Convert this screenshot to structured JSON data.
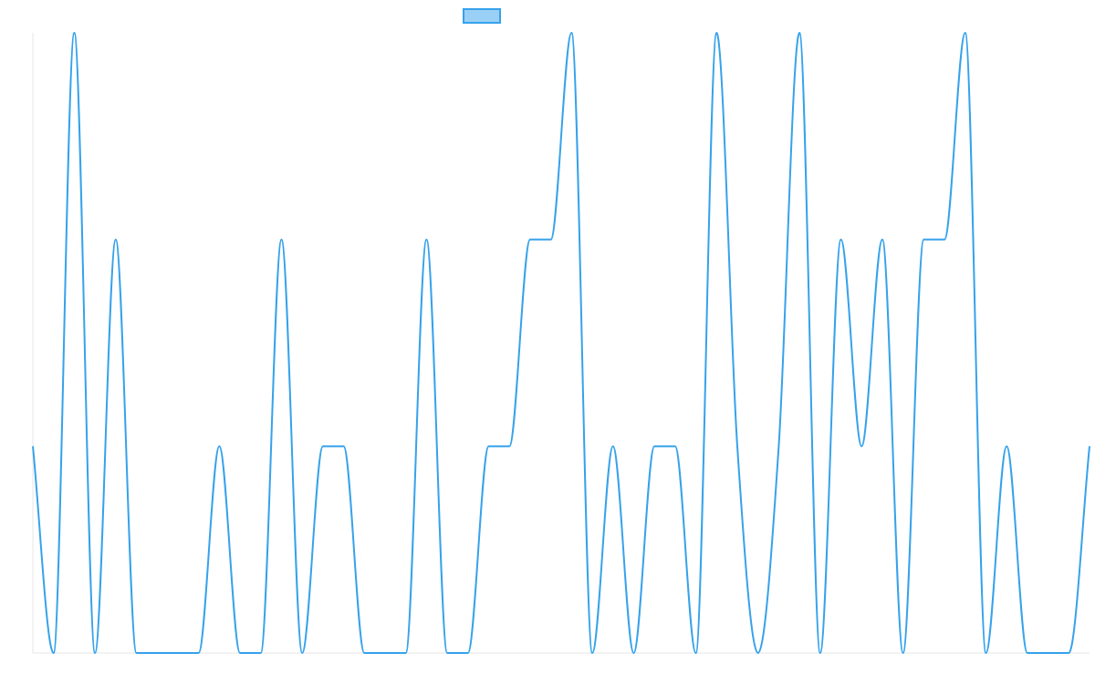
{
  "chart_data": {
    "type": "line",
    "title": "",
    "xlabel": "",
    "ylabel": "",
    "grid": false,
    "legend_position": "top",
    "ylim": [
      0,
      3
    ],
    "x": [
      0,
      1,
      2,
      3,
      4,
      5,
      6,
      7,
      8,
      9,
      10,
      11,
      12,
      13,
      14,
      15,
      16,
      17,
      18,
      19,
      20,
      21,
      22,
      23,
      24,
      25,
      26,
      27,
      28,
      29,
      30,
      31,
      32,
      33,
      34,
      35,
      36,
      37,
      38,
      39,
      40,
      41,
      42,
      43,
      44,
      45,
      46,
      47,
      48,
      49,
      50,
      51
    ],
    "series": [
      {
        "name": "",
        "color": "#36a2eb",
        "fill": "#9ad0f5",
        "values": [
          1,
          0,
          3,
          0,
          2,
          0,
          0,
          0,
          0,
          1,
          0,
          0,
          2,
          0,
          1,
          1,
          0,
          0,
          0,
          2,
          0,
          0,
          1,
          1,
          2,
          2,
          3,
          0,
          1,
          0,
          1,
          1,
          0,
          3,
          1,
          0,
          1,
          3,
          0,
          2,
          1,
          2,
          0,
          2,
          2,
          3,
          0,
          1,
          0,
          0,
          0,
          1
        ]
      }
    ]
  }
}
